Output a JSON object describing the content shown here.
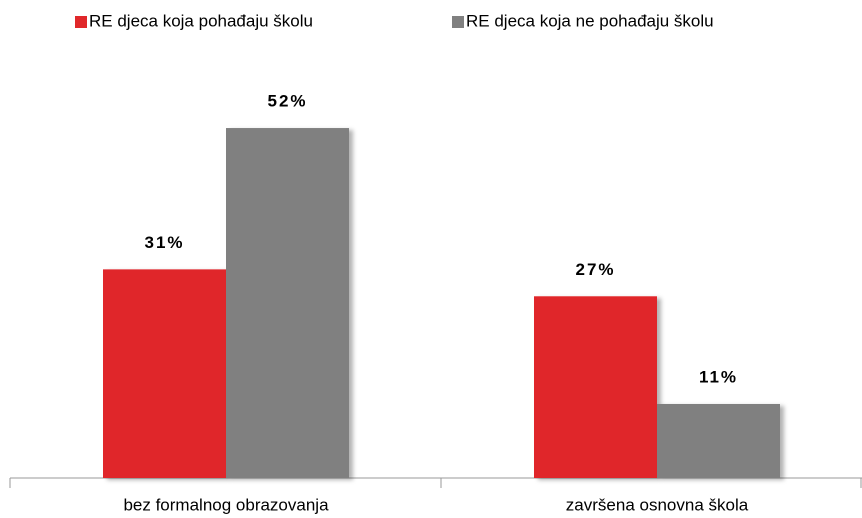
{
  "chart_data": {
    "type": "bar",
    "categories": [
      "bez formalnog obrazovanja",
      "završena osnovna škola"
    ],
    "series": [
      {
        "name": "RE djeca koja pohađaju školu",
        "color": "#e0282a",
        "values": [
          31,
          27
        ],
        "value_labels": [
          "31%",
          "27%"
        ]
      },
      {
        "name": "RE djeca koja ne pohađaju školu",
        "color": "#808080",
        "values": [
          52,
          11
        ],
        "value_labels": [
          "52%",
          "11%"
        ]
      }
    ]
  }
}
